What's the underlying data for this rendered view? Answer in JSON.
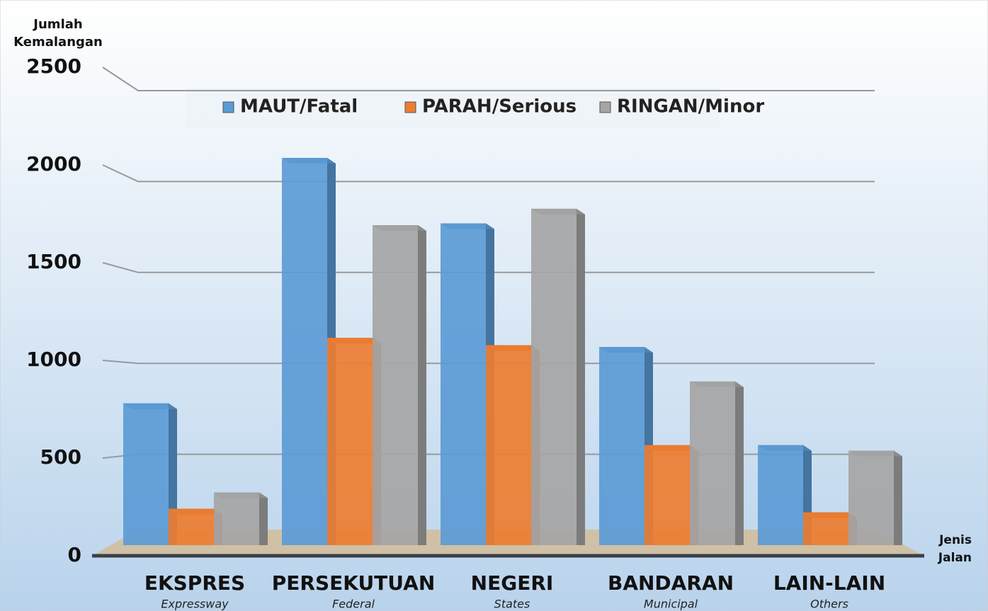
{
  "chart_data": {
    "type": "bar",
    "ylabel_lines": [
      "Jumlah",
      "Kemalangan"
    ],
    "xlabel_lines": [
      "Jenis",
      "Jalan"
    ],
    "categories": [
      "EKSPRES",
      "PERSEKUTUAN",
      "NEGERI",
      "BANDARAN",
      "LAIN-LAIN"
    ],
    "category_subtitles": [
      "Expressway",
      "Federal",
      "States",
      "Municipal",
      "Others"
    ],
    "series": [
      {
        "name": "MAUT/Fatal",
        "color": "#5b9bd5",
        "values": [
          780,
          2130,
          1770,
          1090,
          550
        ]
      },
      {
        "name": "PARAH/Serious",
        "color": "#ed7d31",
        "values": [
          200,
          1140,
          1100,
          550,
          180
        ]
      },
      {
        "name": "RINGAN/Minor",
        "color": "#a5a5a5",
        "values": [
          290,
          1760,
          1850,
          900,
          520
        ]
      }
    ],
    "ylim": [
      0,
      2500
    ],
    "yticks": [
      0,
      500,
      1000,
      1500,
      2000,
      2500
    ],
    "grid": true
  }
}
